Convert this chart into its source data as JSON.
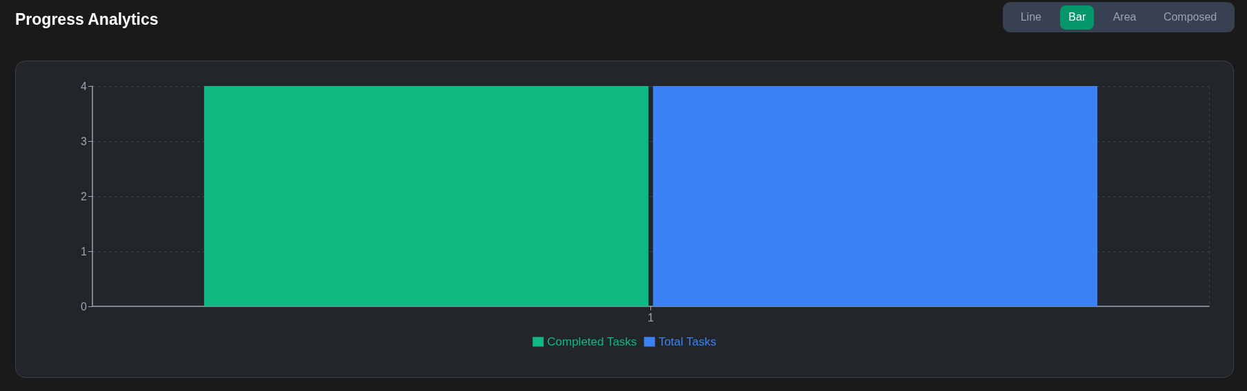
{
  "chart_data": {
    "type": "bar",
    "title": "Progress Analytics",
    "annotations": [
      "Line",
      "Bar",
      "Area",
      "Composed"
    ],
    "categories": [
      "1"
    ],
    "series": [
      {
        "name": "Completed Tasks",
        "color": "#10b981",
        "values": [
          4
        ]
      },
      {
        "name": "Total Tasks",
        "color": "#3b82f6",
        "values": [
          4
        ]
      }
    ],
    "ylim": [
      0,
      4
    ],
    "yticks": [
      0,
      1,
      2,
      3,
      4
    ],
    "grid": true,
    "legend": "bottom"
  }
}
